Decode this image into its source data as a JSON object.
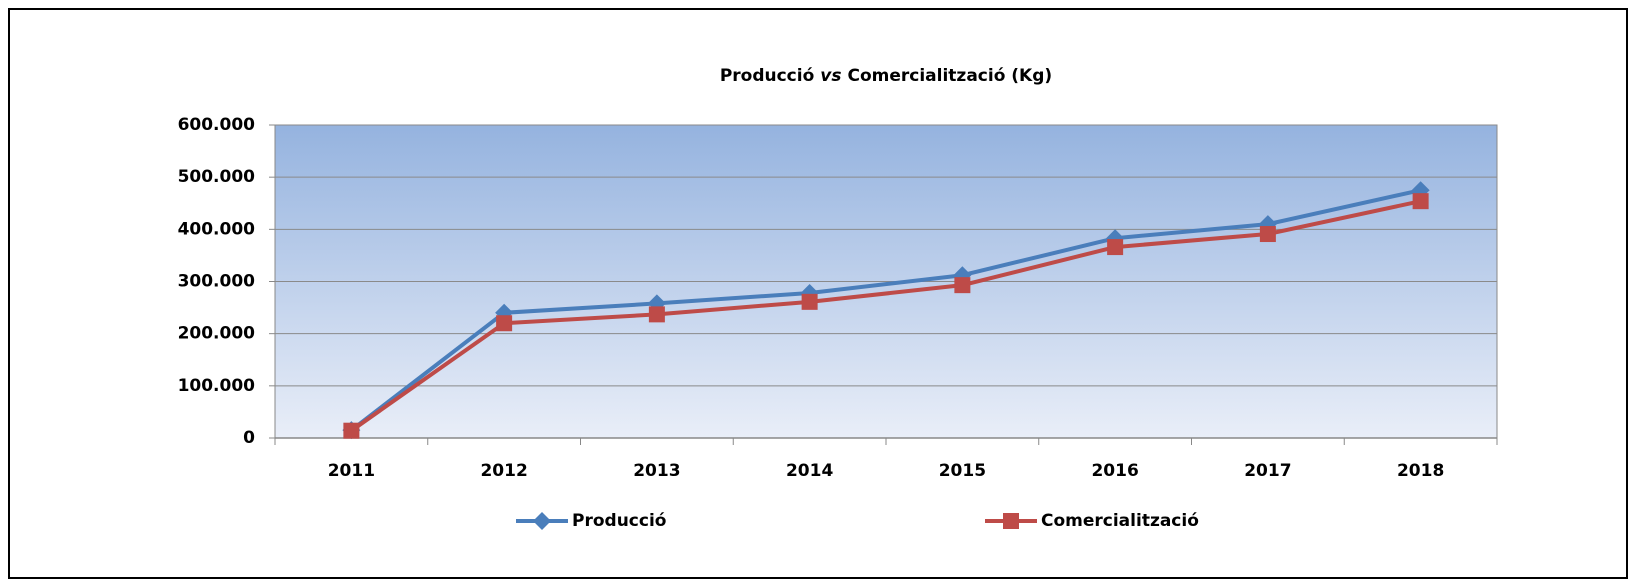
{
  "chart_data": {
    "type": "line",
    "title": [
      "Producció",
      "vs",
      "Comercialització (Kg)"
    ],
    "categories": [
      "2011",
      "2012",
      "2013",
      "2014",
      "2015",
      "2016",
      "2017",
      "2018"
    ],
    "series": [
      {
        "name": "Producció",
        "color": "#4a7ebb",
        "marker": "diamond",
        "values": [
          15000,
          240000,
          258000,
          278000,
          312000,
          383000,
          410000,
          475000
        ]
      },
      {
        "name": "Comercialització",
        "color": "#be4b48",
        "marker": "square",
        "values": [
          14000,
          220000,
          237000,
          261000,
          293000,
          366000,
          391000,
          454000
        ]
      }
    ],
    "ylim": [
      0,
      600000
    ],
    "yticks": [
      0,
      {
        "value": 100000,
        "label": "100.000"
      },
      {
        "value": 200000,
        "label": "200.000"
      },
      {
        "value": 300000,
        "label": "300.000"
      },
      {
        "value": 400000,
        "label": "400.000"
      },
      {
        "value": 500000,
        "label": "500.000"
      },
      {
        "value": 600000,
        "label": "600.000"
      }
    ],
    "grid": true,
    "legend": "bottom"
  }
}
